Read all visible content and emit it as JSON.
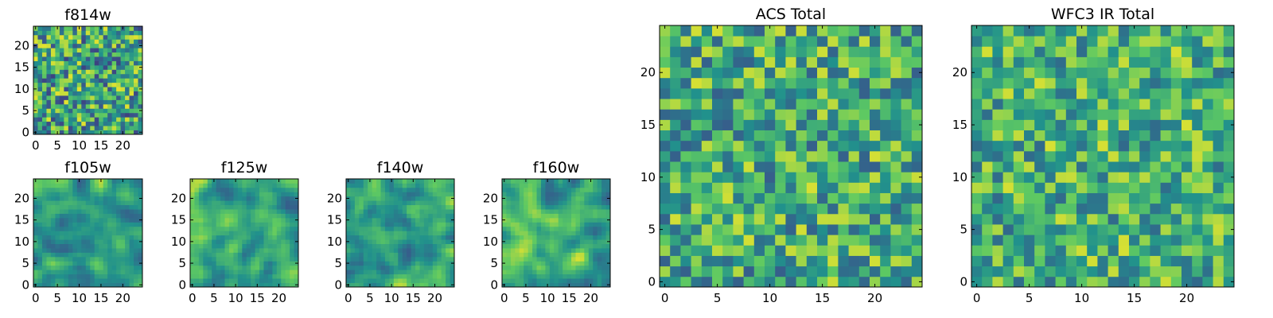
{
  "figure": {
    "description_shown": false
  },
  "colormap": {
    "name": "viridis",
    "stops": [
      "#440154",
      "#3b528b",
      "#21918c",
      "#5ec962",
      "#fde725"
    ]
  },
  "chart_data": [
    {
      "type": "heatmap",
      "id": "f814w",
      "title": "f814w",
      "grid_size": 25,
      "xticks": [
        0,
        5,
        10,
        15,
        20
      ],
      "yticks": [
        0,
        5,
        10,
        15,
        20
      ],
      "xlim": [
        0,
        24
      ],
      "ylim": [
        0,
        24
      ],
      "value_range": [
        0,
        1
      ],
      "pattern": "uniform-noise",
      "mean": 0.58,
      "spread": 0.38,
      "seed": 11
    },
    {
      "type": "heatmap",
      "id": "f105w",
      "title": "f105w",
      "grid_size": 25,
      "xticks": [
        0,
        5,
        10,
        15,
        20
      ],
      "yticks": [
        0,
        5,
        10,
        15,
        20
      ],
      "xlim": [
        0,
        24
      ],
      "ylim": [
        0,
        24
      ],
      "value_range": [
        0,
        1
      ],
      "pattern": "smooth-blob",
      "mean": 0.6,
      "spread": 0.3,
      "seed": 23
    },
    {
      "type": "heatmap",
      "id": "f125w",
      "title": "f125w",
      "grid_size": 25,
      "xticks": [
        0,
        5,
        10,
        15,
        20
      ],
      "yticks": [
        0,
        5,
        10,
        15,
        20
      ],
      "xlim": [
        0,
        24
      ],
      "ylim": [
        0,
        24
      ],
      "value_range": [
        0,
        1
      ],
      "pattern": "smooth-blob",
      "mean": 0.6,
      "spread": 0.3,
      "seed": 37
    },
    {
      "type": "heatmap",
      "id": "f140w",
      "title": "f140w",
      "grid_size": 25,
      "xticks": [
        0,
        5,
        10,
        15,
        20
      ],
      "yticks": [
        0,
        5,
        10,
        15,
        20
      ],
      "xlim": [
        0,
        24
      ],
      "ylim": [
        0,
        24
      ],
      "value_range": [
        0,
        1
      ],
      "pattern": "smooth-blob",
      "mean": 0.6,
      "spread": 0.3,
      "seed": 41
    },
    {
      "type": "heatmap",
      "id": "f160w",
      "title": "f160w",
      "grid_size": 25,
      "xticks": [
        0,
        5,
        10,
        15,
        20
      ],
      "yticks": [
        0,
        5,
        10,
        15,
        20
      ],
      "xlim": [
        0,
        24
      ],
      "ylim": [
        0,
        24
      ],
      "value_range": [
        0,
        1
      ],
      "pattern": "smooth-blob",
      "mean": 0.62,
      "spread": 0.32,
      "seed": 53
    },
    {
      "type": "heatmap",
      "id": "acs-total",
      "title": "ACS Total",
      "grid_size": 25,
      "xticks": [
        0,
        5,
        10,
        15,
        20
      ],
      "yticks": [
        0,
        5,
        10,
        15,
        20
      ],
      "xlim": [
        0,
        24
      ],
      "ylim": [
        0,
        24
      ],
      "value_range": [
        0,
        1
      ],
      "pattern": "uniform-noise",
      "mean": 0.62,
      "spread": 0.32,
      "seed": 67
    },
    {
      "type": "heatmap",
      "id": "wfc3-ir-total",
      "title": "WFC3 IR Total",
      "grid_size": 25,
      "xticks": [
        0,
        5,
        10,
        15,
        20
      ],
      "yticks": [
        0,
        5,
        10,
        15,
        20
      ],
      "xlim": [
        0,
        24
      ],
      "ylim": [
        0,
        24
      ],
      "value_range": [
        0,
        1
      ],
      "pattern": "uniform-noise",
      "mean": 0.64,
      "spread": 0.3,
      "seed": 79
    }
  ]
}
